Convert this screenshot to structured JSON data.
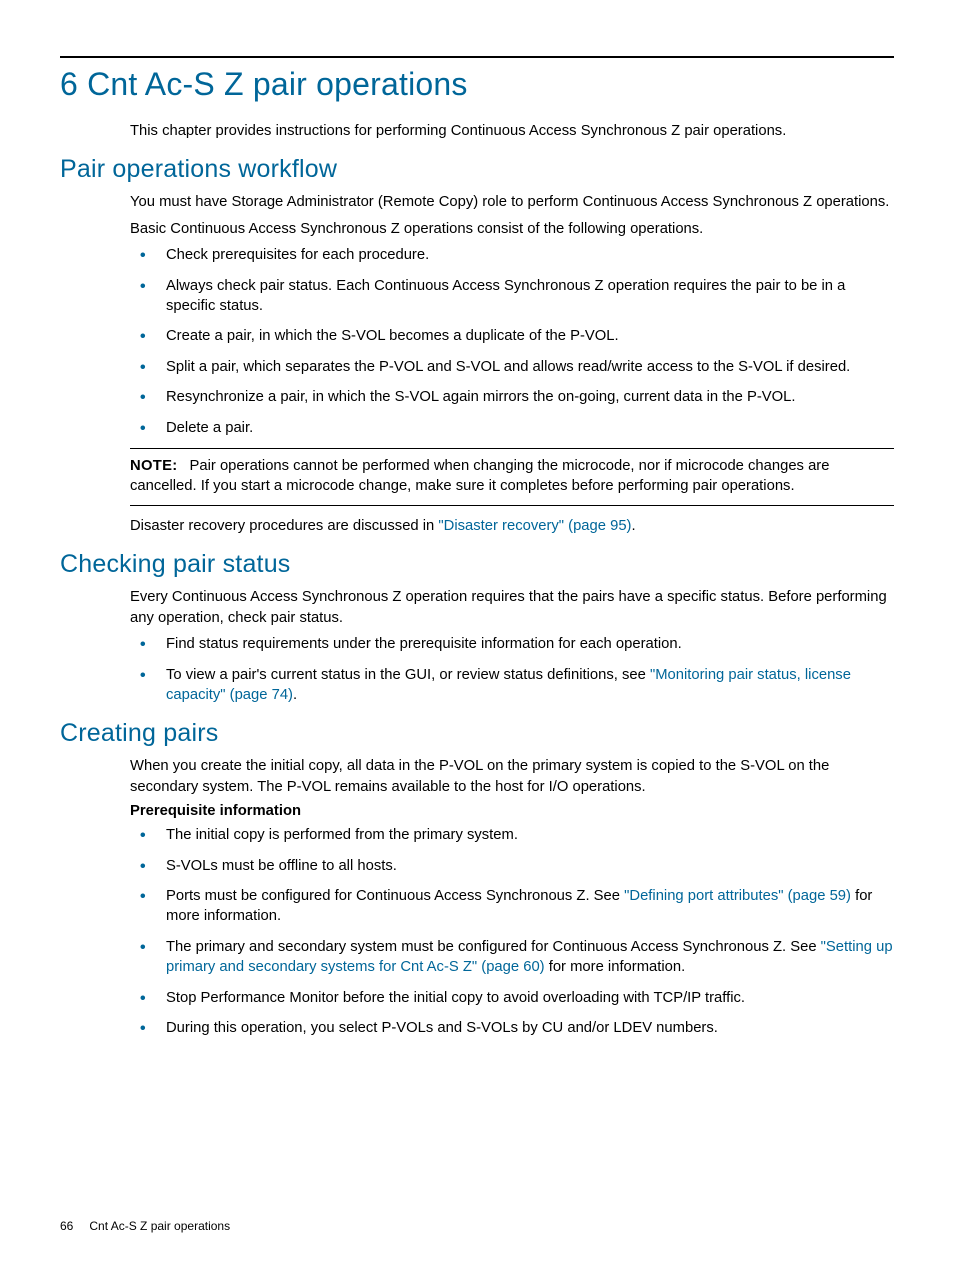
{
  "chapter": {
    "title": "6 Cnt Ac-S Z pair operations"
  },
  "intro": "This chapter provides instructions for performing Continuous Access Synchronous Z pair operations.",
  "s1": {
    "heading": "Pair operations workflow",
    "p1": "You must have Storage Administrator (Remote Copy) role to perform Continuous Access Synchronous Z operations.",
    "p2": "Basic Continuous Access Synchronous Z operations consist of the following operations.",
    "b1": "Check prerequisites for each procedure.",
    "b2": "Always check pair status. Each Continuous Access Synchronous Z operation requires the pair to be in a specific status.",
    "b3": "Create a pair, in which the S-VOL becomes a duplicate of the P-VOL.",
    "b4": "Split a pair, which separates the P-VOL and S-VOL and allows read/write access to the S-VOL if desired.",
    "b5": "Resynchronize a pair, in which the S-VOL again mirrors the on-going, current data in the P-VOL.",
    "b6": "Delete a pair.",
    "note_label": "NOTE:",
    "note_body": "Pair operations cannot be performed when changing the microcode, nor if microcode changes are cancelled. If you start a microcode change, make sure it completes before performing pair operations.",
    "dr_pre": "Disaster recovery procedures are discussed in ",
    "dr_link": "\"Disaster recovery\" (page 95)",
    "dr_post": "."
  },
  "s2": {
    "heading": "Checking pair status",
    "p1": "Every Continuous Access Synchronous Z operation requires that the pairs have a specific status. Before performing any operation, check pair status.",
    "b1": "Find status requirements under the prerequisite information for each operation.",
    "b2_pre": "To view a pair's current status in the GUI, or review status definitions, see ",
    "b2_link": "\"Monitoring pair status, license capacity\" (page 74)",
    "b2_post": "."
  },
  "s3": {
    "heading": "Creating pairs",
    "p1": "When you create the initial copy, all data in the P-VOL on the primary system is copied to the S-VOL on the secondary system. The P-VOL remains available to the host for I/O operations.",
    "subhead": "Prerequisite information",
    "b1": "The initial copy is performed from the primary system.",
    "b2": "S-VOLs must be offline to all hosts.",
    "b3_pre": "Ports must be configured for Continuous Access Synchronous Z. See ",
    "b3_link": "\"Defining port attributes\" (page 59)",
    "b3_post": " for more information.",
    "b4_pre": "The primary and secondary system must be configured for Continuous Access Synchronous Z. See ",
    "b4_link": "\"Setting up primary and secondary systems for Cnt Ac-S Z\" (page 60)",
    "b4_post": " for more information.",
    "b5": "Stop Performance Monitor before the initial copy to avoid overloading with TCP/IP traffic.",
    "b6": "During this operation, you select P-VOLs and S-VOLs by CU and/or LDEV numbers."
  },
  "footer": {
    "page": "66",
    "title": "Cnt Ac-S Z pair operations"
  }
}
